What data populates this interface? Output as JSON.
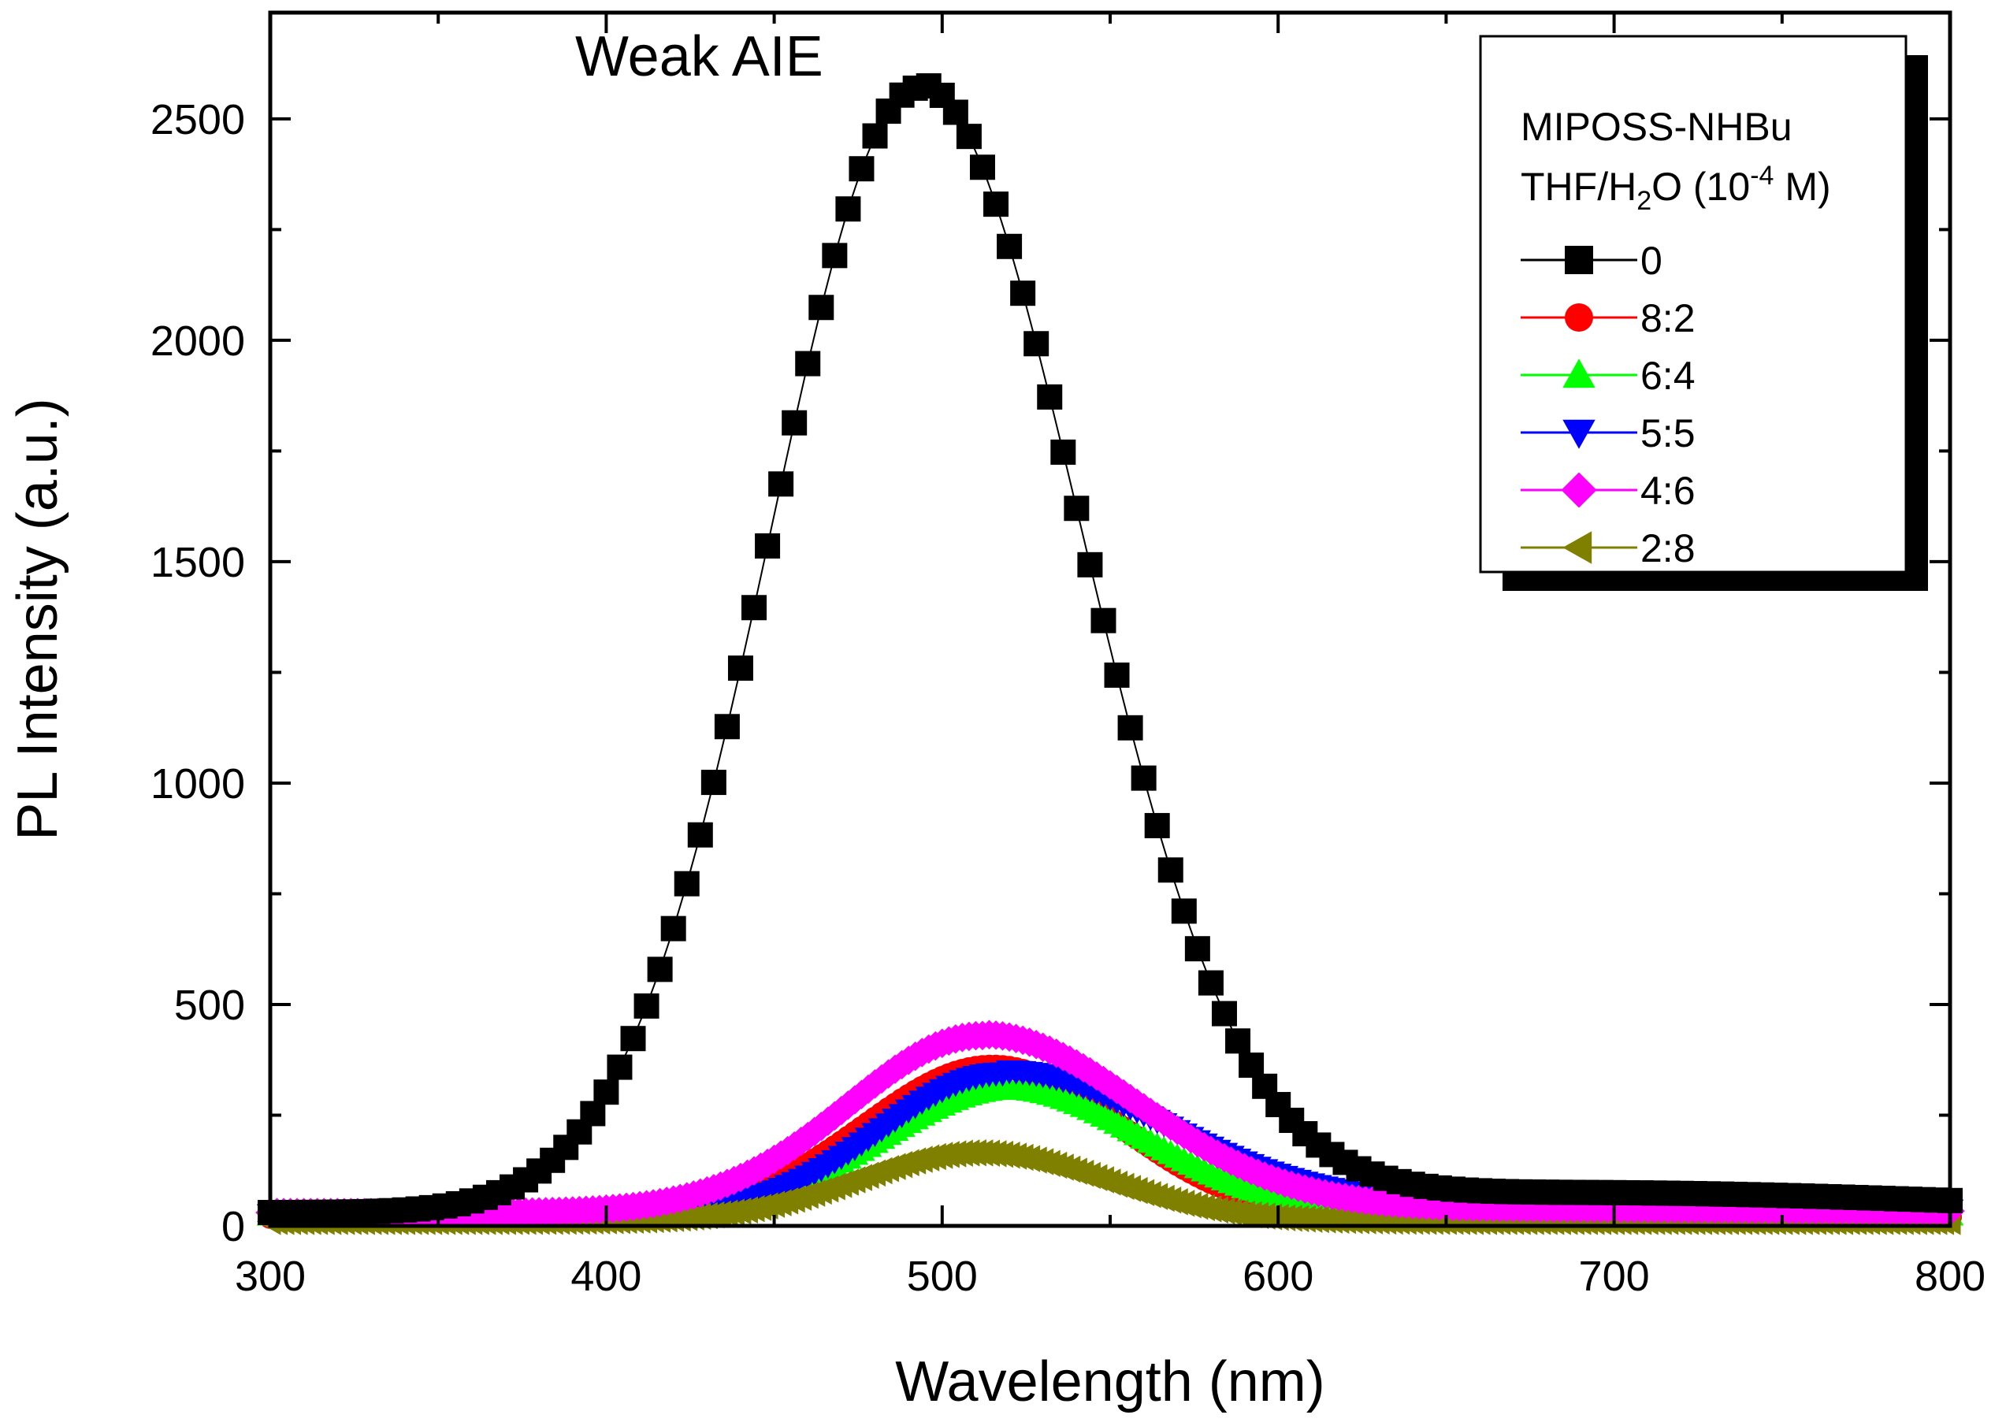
{
  "chart_data": {
    "type": "scatter",
    "title": "",
    "annotation": "Weak AIE",
    "xlabel": "Wavelength (nm)",
    "ylabel": "PL Intensity (a.u.)",
    "xlim": [
      300,
      800
    ],
    "ylim": [
      0,
      2740
    ],
    "x_ticks": [
      300,
      400,
      500,
      600,
      700,
      800
    ],
    "y_ticks": [
      0,
      500,
      1000,
      1500,
      2000,
      2500
    ],
    "x_tick_labels": [
      "300",
      "400",
      "500",
      "600",
      "700",
      "800"
    ],
    "y_tick_labels": [
      "0",
      "500",
      "1000",
      "1500",
      "2000",
      "2500"
    ],
    "grid": false,
    "legend": {
      "position": "top-right",
      "title_line1": "MIPOSS-NHBu",
      "title_line2_pre": "THF/H",
      "title_line2_sub": "2",
      "title_line2_mid": "O (10",
      "title_line2_sup": "-4",
      "title_line2_post": " M)"
    },
    "series": [
      {
        "name": "0",
        "color": "#000000",
        "marker": "square",
        "line": true,
        "peak": 2540,
        "center": 493,
        "sigma_left": 44,
        "sigma_right": 48,
        "baseline": 30,
        "tail_amp": 45,
        "tail_center": 690,
        "tail_sigma": 110,
        "step": 4
      },
      {
        "name": "8:2",
        "color": "#ff0000",
        "marker": "circle",
        "line": false,
        "peak": 340,
        "center": 515,
        "sigma_left": 38,
        "sigma_right": 38,
        "baseline": 20,
        "tail_amp": 0,
        "tail_center": 650,
        "tail_sigma": 100,
        "step": 2
      },
      {
        "name": "6:4",
        "color": "#00ff00",
        "marker": "triangle-up",
        "line": false,
        "peak": 285,
        "center": 520,
        "sigma_left": 38,
        "sigma_right": 40,
        "baseline": 25,
        "tail_amp": 0,
        "tail_center": 650,
        "tail_sigma": 100,
        "step": 2
      },
      {
        "name": "5:5",
        "color": "#0000ff",
        "marker": "triangle-down",
        "line": false,
        "peak": 320,
        "center": 518,
        "sigma_left": 36,
        "sigma_right": 48,
        "baseline": 25,
        "tail_amp": 25,
        "tail_center": 680,
        "tail_sigma": 90,
        "step": 2
      },
      {
        "name": "4:6",
        "color": "#ff00ff",
        "marker": "diamond",
        "line": false,
        "peak": 400,
        "center": 512,
        "sigma_left": 40,
        "sigma_right": 46,
        "baseline": 30,
        "tail_amp": 10,
        "tail_center": 670,
        "tail_sigma": 90,
        "step": 2
      },
      {
        "name": "2:8",
        "color": "#808000",
        "marker": "triangle-left",
        "line": false,
        "peak": 155,
        "center": 510,
        "sigma_left": 36,
        "sigma_right": 38,
        "baseline": 10,
        "tail_amp": 0,
        "tail_center": 650,
        "tail_sigma": 100,
        "step": 2
      }
    ]
  }
}
